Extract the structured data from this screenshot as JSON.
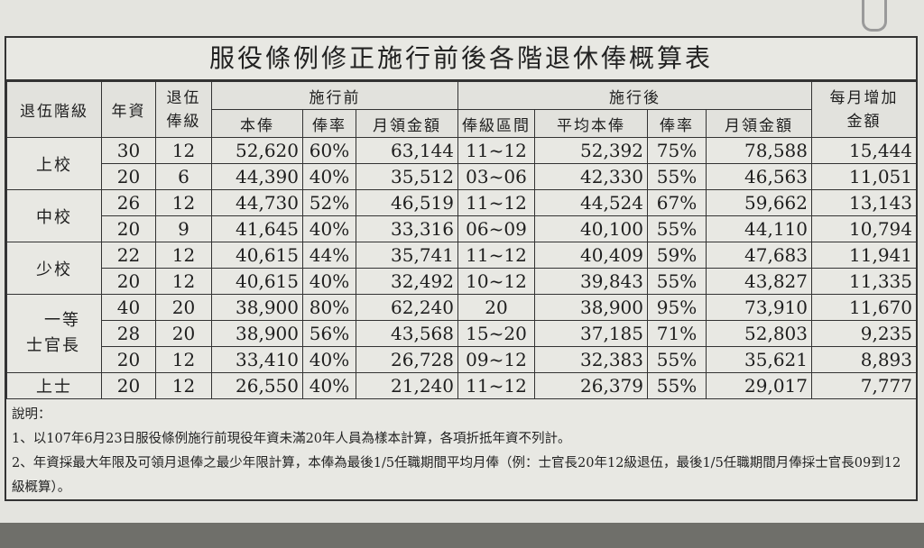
{
  "title": "服役條例修正施行前後各階退休俸概算表",
  "headers": {
    "rank": "退伍階級",
    "years": "年資",
    "grade": "退伍俸級",
    "before": "施行前",
    "after": "施行後",
    "increase": "每月增加金額",
    "before_cols": [
      "本俸",
      "俸率",
      "月領金額"
    ],
    "after_cols": [
      "俸級區間",
      "平均本俸",
      "俸率",
      "月領金額"
    ]
  },
  "groups": [
    {
      "rank": "上校",
      "rows": [
        [
          "30",
          "12",
          "52,620",
          "60%",
          "63,144",
          "11~12",
          "52,392",
          "75%",
          "78,588",
          "15,444"
        ],
        [
          "20",
          "6",
          "44,390",
          "40%",
          "35,512",
          "03~06",
          "42,330",
          "55%",
          "46,563",
          "11,051"
        ]
      ]
    },
    {
      "rank": "中校",
      "rows": [
        [
          "26",
          "12",
          "44,730",
          "52%",
          "46,519",
          "11~12",
          "44,524",
          "67%",
          "59,662",
          "13,143"
        ],
        [
          "20",
          "9",
          "41,645",
          "40%",
          "33,316",
          "06~09",
          "40,100",
          "55%",
          "44,110",
          "10,794"
        ]
      ]
    },
    {
      "rank": "少校",
      "rows": [
        [
          "22",
          "12",
          "40,615",
          "44%",
          "35,741",
          "11~12",
          "40,409",
          "59%",
          "47,683",
          "11,941"
        ],
        [
          "20",
          "12",
          "40,615",
          "40%",
          "32,492",
          "10~12",
          "39,843",
          "55%",
          "43,827",
          "11,335"
        ]
      ]
    },
    {
      "rank": "一等士官長",
      "rows": [
        [
          "40",
          "20",
          "38,900",
          "80%",
          "62,240",
          "20",
          "38,900",
          "95%",
          "73,910",
          "11,670"
        ],
        [
          "28",
          "20",
          "38,900",
          "56%",
          "43,568",
          "15~20",
          "37,185",
          "71%",
          "52,803",
          "9,235"
        ],
        [
          "20",
          "12",
          "33,410",
          "40%",
          "26,728",
          "09~12",
          "32,383",
          "55%",
          "35,621",
          "8,893"
        ]
      ]
    },
    {
      "rank": "上士",
      "rows": [
        [
          "20",
          "12",
          "26,550",
          "40%",
          "21,240",
          "11~12",
          "26,379",
          "55%",
          "29,017",
          "7,777"
        ]
      ]
    }
  ],
  "notes": {
    "heading": "說明：",
    "items": [
      "1、以107年6月23日服役條例施行前現役年資未滿20年人員為樣本計算，各項折抵年資不列計。",
      "2、年資採最大年限及可領月退俸之最少年限計算，本俸為最後1/5任職期間平均月俸（例：士官長20年12級退伍，最後1/5任職期間月俸採士官長09到12級概算）。"
    ]
  }
}
